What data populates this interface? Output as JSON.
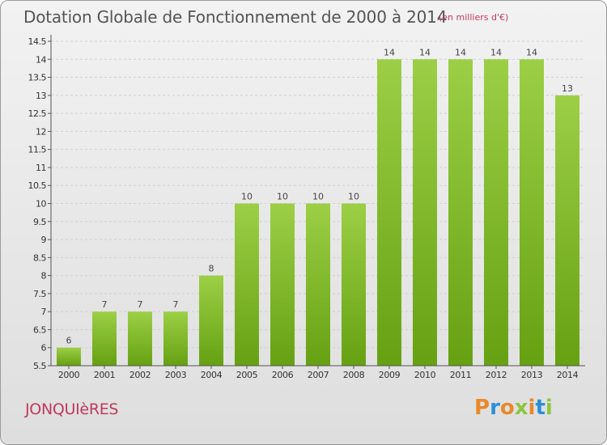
{
  "header": {
    "title": "Dotation Globale de Fonctionnement de 2000 à 2014",
    "unit": "(en milliers d'€)"
  },
  "footer": {
    "commune": "JONQUIèRES",
    "logo_text": "Proxiti"
  },
  "colors": {
    "bar_light": "#9ccf46",
    "bar_dark": "#66a112",
    "title_text": "#555555",
    "accent_text": "#c0395f",
    "axis": "#555555",
    "grid": "#cfcfcf",
    "logo": [
      "#e8892a",
      "#2a8fd6",
      "#e8892a",
      "#8dc63f",
      "#e8892a",
      "#2a8fd6",
      "#8dc63f"
    ]
  },
  "chart_data": {
    "type": "bar",
    "categories": [
      "2000",
      "2001",
      "2002",
      "2003",
      "2004",
      "2005",
      "2006",
      "2007",
      "2008",
      "2009",
      "2010",
      "2011",
      "2012",
      "2013",
      "2014"
    ],
    "values": [
      6,
      7,
      7,
      7,
      8,
      10,
      10,
      10,
      10,
      14,
      14,
      14,
      14,
      14,
      13
    ],
    "labels": [
      "6",
      "7",
      "7",
      "7",
      "8",
      "10",
      "10",
      "10",
      "10",
      "14",
      "14",
      "14",
      "14",
      "14",
      "13"
    ],
    "yticks": [
      "5.5",
      "6",
      "6.5",
      "7",
      "7.5",
      "8",
      "8.5",
      "9",
      "9.5",
      "10",
      "10.5",
      "11",
      "11.5",
      "12",
      "12.5",
      "13",
      "13.5",
      "14",
      "14.5"
    ],
    "ylim": [
      5.5,
      14.5
    ],
    "grid": true
  }
}
